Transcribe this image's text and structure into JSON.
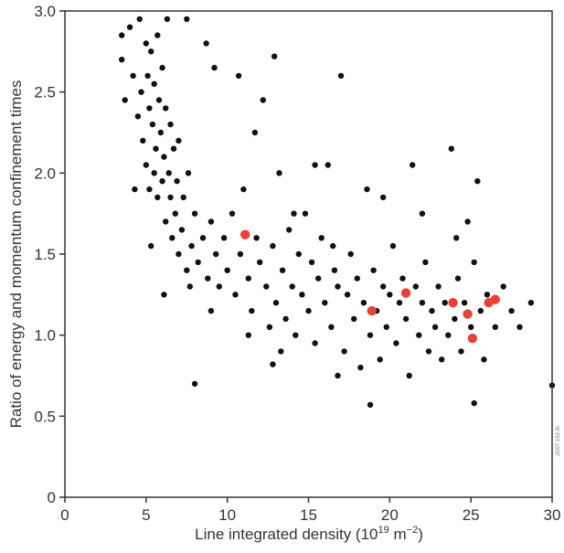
{
  "chart_data": {
    "type": "scatter",
    "title": "",
    "xlabel": {
      "prefix": "Line integrated density (10",
      "sup1": "19",
      "mid": " m",
      "sup2": "−2",
      "suffix": ")"
    },
    "ylabel": "Ratio of energy and momentum confinement times",
    "xlim": [
      0,
      30
    ],
    "ylim": [
      0,
      3.0
    ],
    "xticks": [
      0,
      5,
      10,
      15,
      20,
      25,
      30
    ],
    "yticks": [
      0,
      0.5,
      1.0,
      1.5,
      2.0,
      2.5,
      3.0
    ],
    "ytick_labels": [
      "0",
      "0.5",
      "1.0",
      "1.5",
      "2.0",
      "2.5",
      "3.0"
    ],
    "grid": false,
    "figure_code": "JG07.152-9c",
    "colors": {
      "black_points": "#111111",
      "red_points": "#e8413a",
      "axes": "#333333"
    },
    "series": [
      {
        "color": "#111111",
        "points": [
          [
            3.5,
            2.85
          ],
          [
            3.5,
            2.7
          ],
          [
            3.7,
            2.45
          ],
          [
            4.0,
            2.9
          ],
          [
            4.2,
            2.6
          ],
          [
            4.5,
            2.35
          ],
          [
            4.6,
            2.95
          ],
          [
            4.7,
            2.5
          ],
          [
            4.8,
            2.2
          ],
          [
            5.0,
            2.8
          ],
          [
            5.0,
            2.05
          ],
          [
            5.1,
            2.6
          ],
          [
            5.2,
            2.4
          ],
          [
            5.2,
            1.9
          ],
          [
            5.3,
            2.75
          ],
          [
            5.4,
            2.3
          ],
          [
            5.5,
            2.55
          ],
          [
            5.5,
            2.0
          ],
          [
            5.6,
            2.15
          ],
          [
            5.7,
            2.85
          ],
          [
            5.7,
            1.85
          ],
          [
            5.8,
            2.45
          ],
          [
            5.9,
            2.25
          ],
          [
            6.0,
            2.65
          ],
          [
            6.0,
            1.95
          ],
          [
            6.1,
            2.1
          ],
          [
            6.2,
            2.4
          ],
          [
            6.2,
            1.7
          ],
          [
            6.3,
            2.95
          ],
          [
            6.4,
            2.0
          ],
          [
            6.5,
            1.85
          ],
          [
            6.5,
            2.3
          ],
          [
            6.6,
            1.6
          ],
          [
            6.7,
            2.15
          ],
          [
            6.8,
            1.75
          ],
          [
            6.9,
            1.95
          ],
          [
            7.0,
            1.5
          ],
          [
            7.0,
            2.2
          ],
          [
            7.2,
            1.65
          ],
          [
            7.3,
            1.85
          ],
          [
            7.5,
            1.4
          ],
          [
            7.6,
            2.0
          ],
          [
            7.8,
            1.55
          ],
          [
            8.0,
            1.75
          ],
          [
            8.2,
            1.45
          ],
          [
            8.5,
            1.6
          ],
          [
            8.8,
            1.35
          ],
          [
            9.0,
            1.7
          ],
          [
            9.3,
            1.5
          ],
          [
            9.5,
            1.3
          ],
          [
            9.8,
            1.6
          ],
          [
            10.0,
            1.4
          ],
          [
            10.3,
            1.75
          ],
          [
            10.5,
            1.25
          ],
          [
            10.8,
            1.5
          ],
          [
            11.0,
            1.9
          ],
          [
            11.3,
            1.35
          ],
          [
            11.5,
            1.15
          ],
          [
            11.8,
            1.6
          ],
          [
            12.0,
            1.45
          ],
          [
            12.2,
            2.45
          ],
          [
            12.4,
            1.3
          ],
          [
            12.6,
            1.05
          ],
          [
            12.8,
            1.55
          ],
          [
            13.0,
            1.2
          ],
          [
            13.2,
            2.0
          ],
          [
            13.4,
            1.4
          ],
          [
            13.6,
            1.1
          ],
          [
            13.8,
            1.65
          ],
          [
            14.0,
            1.3
          ],
          [
            14.2,
            1.0
          ],
          [
            14.4,
            1.5
          ],
          [
            14.6,
            1.25
          ],
          [
            14.8,
            1.75
          ],
          [
            15.0,
            1.15
          ],
          [
            15.2,
            1.45
          ],
          [
            15.4,
            0.95
          ],
          [
            15.6,
            1.35
          ],
          [
            15.8,
            1.6
          ],
          [
            16.0,
            1.2
          ],
          [
            16.2,
            2.05
          ],
          [
            16.4,
            1.05
          ],
          [
            16.6,
            1.4
          ],
          [
            16.8,
            1.3
          ],
          [
            17.0,
            2.6
          ],
          [
            17.2,
            0.9
          ],
          [
            17.4,
            1.25
          ],
          [
            17.6,
            1.5
          ],
          [
            17.8,
            1.1
          ],
          [
            18.0,
            1.35
          ],
          [
            18.2,
            0.8
          ],
          [
            18.4,
            1.2
          ],
          [
            18.6,
            1.9
          ],
          [
            18.8,
            1.0
          ],
          [
            19.0,
            1.4
          ],
          [
            19.2,
            1.15
          ],
          [
            19.4,
            0.85
          ],
          [
            19.6,
            1.3
          ],
          [
            19.8,
            1.05
          ],
          [
            20.0,
            1.25
          ],
          [
            20.2,
            1.55
          ],
          [
            20.4,
            0.95
          ],
          [
            20.6,
            1.2
          ],
          [
            20.8,
            1.35
          ],
          [
            21.0,
            1.1
          ],
          [
            21.2,
            0.75
          ],
          [
            21.4,
            2.05
          ],
          [
            21.6,
            1.3
          ],
          [
            21.8,
            1.0
          ],
          [
            22.0,
            1.2
          ],
          [
            22.2,
            1.45
          ],
          [
            22.4,
            0.9
          ],
          [
            22.6,
            1.15
          ],
          [
            22.8,
            1.05
          ],
          [
            23.0,
            1.3
          ],
          [
            23.2,
            0.85
          ],
          [
            23.4,
            1.2
          ],
          [
            23.6,
            1.0
          ],
          [
            23.8,
            2.15
          ],
          [
            24.0,
            1.1
          ],
          [
            24.2,
            1.35
          ],
          [
            24.4,
            0.9
          ],
          [
            24.6,
            1.2
          ],
          [
            24.8,
            1.7
          ],
          [
            25.0,
            1.05
          ],
          [
            25.2,
            0.58
          ],
          [
            25.4,
            1.95
          ],
          [
            25.6,
            1.15
          ],
          [
            25.8,
            0.85
          ],
          [
            26.0,
            1.25
          ],
          [
            26.5,
            1.05
          ],
          [
            27.0,
            1.3
          ],
          [
            27.5,
            1.15
          ],
          [
            28.0,
            1.05
          ],
          [
            28.7,
            1.2
          ],
          [
            30.0,
            0.69
          ],
          [
            8.0,
            0.7
          ],
          [
            12.8,
            0.82
          ],
          [
            18.8,
            0.57
          ],
          [
            12.9,
            2.72
          ],
          [
            9.2,
            2.65
          ],
          [
            10.7,
            2.6
          ],
          [
            8.7,
            2.8
          ],
          [
            7.5,
            2.95
          ],
          [
            11.7,
            2.25
          ],
          [
            15.4,
            2.05
          ],
          [
            14.1,
            1.75
          ],
          [
            16.5,
            1.55
          ],
          [
            19.6,
            1.85
          ],
          [
            22.0,
            1.75
          ],
          [
            24.1,
            1.6
          ],
          [
            25.2,
            1.45
          ],
          [
            4.3,
            1.9
          ],
          [
            5.3,
            1.55
          ],
          [
            6.1,
            1.25
          ],
          [
            7.7,
            1.3
          ],
          [
            9.0,
            1.15
          ],
          [
            11.3,
            1.0
          ],
          [
            13.3,
            0.9
          ],
          [
            16.8,
            0.75
          ]
        ]
      },
      {
        "color": "#e8413a",
        "points": [
          [
            11.1,
            1.62
          ],
          [
            18.9,
            1.15
          ],
          [
            21.0,
            1.26
          ],
          [
            23.9,
            1.2
          ],
          [
            24.8,
            1.13
          ],
          [
            25.1,
            0.98
          ],
          [
            26.1,
            1.2
          ],
          [
            26.5,
            1.22
          ]
        ]
      }
    ]
  }
}
